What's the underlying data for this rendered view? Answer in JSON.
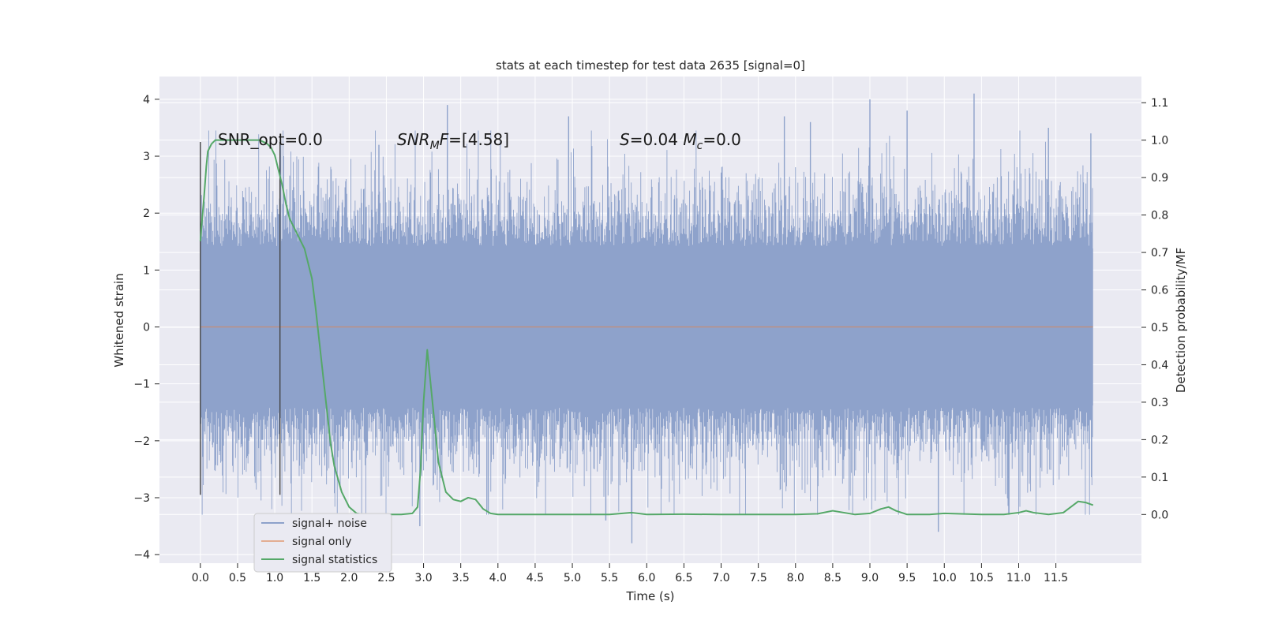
{
  "chart_data": {
    "type": "line",
    "title": "stats at each timestep for test data 2635 [signal=0]",
    "xlabel": "Time (s)",
    "ylabel": "Whitened strain",
    "y2label": "Detection probability/MF",
    "xlim": [
      -0.55,
      12.65
    ],
    "ylim": [
      -4.15,
      4.4
    ],
    "y2lim": [
      -0.13,
      1.17
    ],
    "x_ticks": [
      0.0,
      0.5,
      1.0,
      1.5,
      2.0,
      2.5,
      3.0,
      3.5,
      4.0,
      4.5,
      5.0,
      5.5,
      6.0,
      6.5,
      7.0,
      7.5,
      8.0,
      8.5,
      9.0,
      9.5,
      10.0,
      10.5,
      11.0,
      11.5
    ],
    "x_tick_labels": [
      "0.0",
      "0.5",
      "1.0",
      "1.5",
      "2.0",
      "2.5",
      "3.0",
      "3.5",
      "4.0",
      "4.5",
      "5.0",
      "5.5",
      "6.0",
      "6.5",
      "7.0",
      "7.5",
      "8.0",
      "8.5",
      "9.0",
      "9.5",
      "10.0",
      "10.5",
      "11.0",
      "11.5"
    ],
    "y_ticks": [
      4,
      3,
      2,
      1,
      0,
      -1,
      -2,
      -3,
      -4
    ],
    "y_tick_labels": [
      "4",
      "3",
      "2",
      "1",
      "0",
      "−1",
      "−2",
      "−3",
      "−4"
    ],
    "y2_ticks": [
      1.1,
      1.0,
      0.9,
      0.8,
      0.7,
      0.6,
      0.5,
      0.4,
      0.3,
      0.2,
      0.1,
      0.0
    ],
    "y2_tick_labels": [
      "1.1",
      "1.0",
      "0.9",
      "0.8",
      "0.7",
      "0.6",
      "0.5",
      "0.4",
      "0.3",
      "0.2",
      "0.1",
      "0.0"
    ],
    "grid": true,
    "legend_position": "lower-left",
    "legend": [
      "signal+ noise",
      "signal only",
      "signal statistics"
    ],
    "colors": {
      "noise": "#8ea2cb",
      "signal": "#dd8452",
      "stats": "#55a868",
      "background": "#eaeaf2",
      "grid": "#ffffff",
      "vlines": "#444444"
    },
    "annotations": [
      {
        "text": "SNR_opt=0.0"
      },
      {
        "text": "SNR_MF=[4.58]"
      },
      {
        "text": "S=0.04   M_c=0.0"
      }
    ],
    "series": [
      {
        "name": "signal+ noise",
        "axis": "left",
        "x_range": [
          0.0,
          12.0
        ],
        "note": "dense Gaussian-like strain samples, mostly within ±1.4, peaks up to ~4.0 / −3.8",
        "peaks": [
          {
            "x": 1.08,
            "y": 3.3
          },
          {
            "x": 2.4,
            "y": 3.2
          },
          {
            "x": 2.95,
            "y": -3.5
          },
          {
            "x": 3.32,
            "y": 3.9
          },
          {
            "x": 4.95,
            "y": 3.7
          },
          {
            "x": 5.45,
            "y": -3.4
          },
          {
            "x": 5.8,
            "y": -3.8
          },
          {
            "x": 7.85,
            "y": 3.7
          },
          {
            "x": 8.2,
            "y": 3.6
          },
          {
            "x": 9.0,
            "y": 4.0
          },
          {
            "x": 9.5,
            "y": 3.8
          },
          {
            "x": 9.92,
            "y": -3.6
          },
          {
            "x": 10.4,
            "y": 4.1
          },
          {
            "x": 11.4,
            "y": 3.5
          },
          {
            "x": 11.97,
            "y": 3.4
          }
        ]
      },
      {
        "name": "signal only",
        "axis": "left",
        "x": [
          0.0,
          12.0
        ],
        "y": [
          0.0,
          0.0
        ]
      },
      {
        "name": "signal statistics",
        "axis": "right",
        "x": [
          0.0,
          0.02,
          0.05,
          0.08,
          0.1,
          0.15,
          0.2,
          0.3,
          0.5,
          0.7,
          0.8,
          0.9,
          0.95,
          1.0,
          1.05,
          1.1,
          1.15,
          1.2,
          1.25,
          1.3,
          1.4,
          1.5,
          1.55,
          1.6,
          1.65,
          1.7,
          1.75,
          1.8,
          1.9,
          2.0,
          2.1,
          2.2,
          2.3,
          2.5,
          2.7,
          2.85,
          2.92,
          2.96,
          3.0,
          3.05,
          3.1,
          3.2,
          3.3,
          3.4,
          3.5,
          3.6,
          3.7,
          3.8,
          3.9,
          4.0,
          4.5,
          5.0,
          5.5,
          5.8,
          6.0,
          6.5,
          7.0,
          7.5,
          8.0,
          8.3,
          8.5,
          8.8,
          9.0,
          9.15,
          9.25,
          9.35,
          9.5,
          9.8,
          10.0,
          10.5,
          10.8,
          11.0,
          11.1,
          11.2,
          11.4,
          11.6,
          11.7,
          11.8,
          11.9,
          12.0
        ],
        "y": [
          0.73,
          0.78,
          0.85,
          0.93,
          0.97,
          0.99,
          1.0,
          1.0,
          1.0,
          1.0,
          1.0,
          0.99,
          0.98,
          0.96,
          0.92,
          0.88,
          0.83,
          0.79,
          0.77,
          0.75,
          0.71,
          0.63,
          0.55,
          0.46,
          0.37,
          0.28,
          0.19,
          0.13,
          0.06,
          0.02,
          0.003,
          0.0,
          0.0,
          0.0,
          0.0,
          0.003,
          0.02,
          0.12,
          0.3,
          0.44,
          0.34,
          0.14,
          0.06,
          0.04,
          0.035,
          0.045,
          0.04,
          0.015,
          0.003,
          0.0,
          0.0,
          0.0,
          0.0,
          0.005,
          0.0,
          0.001,
          0.0,
          0.0,
          0.0,
          0.002,
          0.01,
          0.0,
          0.003,
          0.015,
          0.02,
          0.01,
          0.0,
          0.0,
          0.003,
          0.0,
          0.0,
          0.005,
          0.01,
          0.005,
          0.0,
          0.005,
          0.02,
          0.035,
          0.032,
          0.025
        ]
      }
    ],
    "vlines": [
      {
        "x": 0.0,
        "y_range": [
          -2.95,
          3.25
        ]
      },
      {
        "x": 1.07,
        "y_range": [
          -2.95,
          3.25
        ]
      }
    ]
  }
}
